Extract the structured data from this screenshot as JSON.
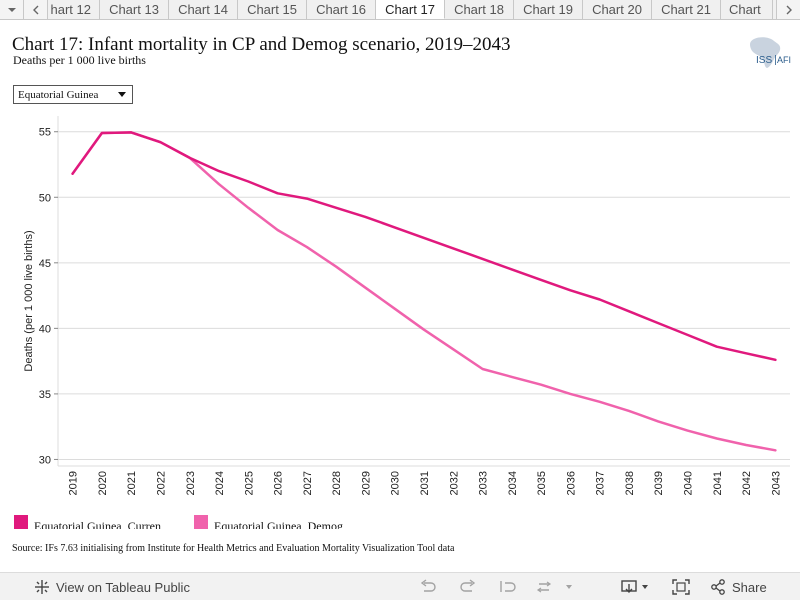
{
  "tabs": {
    "items": [
      "hart 12",
      "Chart 13",
      "Chart 14",
      "Chart 15",
      "Chart 16",
      "Chart 17",
      "Chart 18",
      "Chart 19",
      "Chart 20",
      "Chart 21",
      "Chart"
    ],
    "active_index": 5
  },
  "header": {
    "title": "Chart 17: Infant mortality in CP and Demog scenario, 2019–2043",
    "subtitle": "Deaths per 1 000 live births",
    "logo_text": "ISS",
    "logo_text_suffix": "AFI"
  },
  "filter": {
    "selected": "Equatorial Guinea"
  },
  "colors": {
    "series_current": "#e0197d",
    "series_demog": "#f062ac",
    "gridline": "#dcdcdc",
    "axis": "#888888"
  },
  "chart_data": {
    "type": "line",
    "x": [
      2019,
      2020,
      2021,
      2022,
      2023,
      2024,
      2025,
      2026,
      2027,
      2028,
      2029,
      2030,
      2031,
      2032,
      2033,
      2034,
      2035,
      2036,
      2037,
      2038,
      2039,
      2040,
      2041,
      2042,
      2043
    ],
    "ylabel": "Deaths (per 1 000 live births)",
    "yticks": [
      30,
      35,
      40,
      45,
      50,
      55
    ],
    "ylim": [
      29.5,
      56.2
    ],
    "grid": true,
    "legend_position": "bottom-left",
    "series": [
      {
        "name": "Equatorial Guinea, Current Path",
        "legend_label": "Equatorial Guinea, Curren",
        "values": [
          51.8,
          54.9,
          54.95,
          54.2,
          53.0,
          52.0,
          51.2,
          50.3,
          49.9,
          49.2,
          48.5,
          47.7,
          46.9,
          46.1,
          45.3,
          44.5,
          43.7,
          42.9,
          42.2,
          41.3,
          40.4,
          39.5,
          38.6,
          38.1,
          37.6
        ]
      },
      {
        "name": "Equatorial Guinea, Demog",
        "legend_label": "Equatorial Guinea, Demog",
        "values": [
          51.8,
          54.9,
          54.95,
          54.2,
          53.0,
          51.0,
          49.2,
          47.5,
          46.2,
          44.7,
          43.1,
          41.5,
          39.9,
          38.4,
          36.9,
          36.3,
          35.7,
          35.0,
          34.4,
          33.7,
          32.9,
          32.2,
          31.6,
          31.1,
          30.7
        ]
      }
    ]
  },
  "source": {
    "text": "Source: IFs 7.63 initialising from Institute for Health Metrics and Evaluation Mortality Visualization Tool data"
  },
  "toolbar": {
    "view_label": "View on Tableau Public",
    "share_label": "Share"
  }
}
